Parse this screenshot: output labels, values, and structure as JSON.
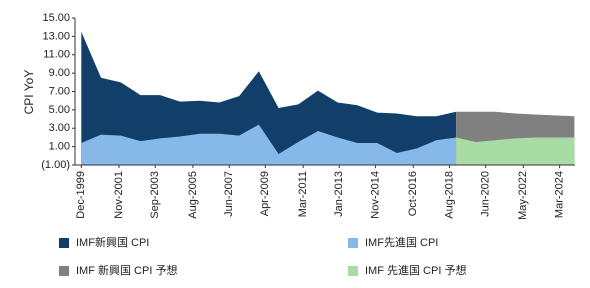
{
  "chart_data": {
    "type": "area",
    "y_label": "CPI YoY",
    "ylim": [
      -1,
      15
    ],
    "yticks": [
      {
        "value": -1,
        "label": "(1.00)"
      },
      {
        "value": 1,
        "label": "1.00"
      },
      {
        "value": 3,
        "label": "3.00"
      },
      {
        "value": 5,
        "label": "5.00"
      },
      {
        "value": 7,
        "label": "7.00"
      },
      {
        "value": 9,
        "label": "9.00"
      },
      {
        "value": 11,
        "label": "11.00"
      },
      {
        "value": 13,
        "label": "13.00"
      },
      {
        "value": 15,
        "label": "15.00"
      }
    ],
    "xlim": [
      1999.6,
      2024.95
    ],
    "xticks": [
      {
        "value": 1999.92,
        "label": "Dec-1999"
      },
      {
        "value": 2001.83,
        "label": "Nov-2001"
      },
      {
        "value": 2003.67,
        "label": "Sep-2003"
      },
      {
        "value": 2005.58,
        "label": "Aug-2005"
      },
      {
        "value": 2007.42,
        "label": "Jun-2007"
      },
      {
        "value": 2009.25,
        "label": "Apr-2009"
      },
      {
        "value": 2011.17,
        "label": "Mar-2011"
      },
      {
        "value": 2013.0,
        "label": "Jan-2013"
      },
      {
        "value": 2014.83,
        "label": "Nov-2014"
      },
      {
        "value": 2016.75,
        "label": "Oct-2016"
      },
      {
        "value": 2018.58,
        "label": "Aug-2018"
      },
      {
        "value": 2020.42,
        "label": "Jun-2020"
      },
      {
        "value": 2022.33,
        "label": "May-2022"
      },
      {
        "value": 2024.17,
        "label": "Mar-2024"
      }
    ],
    "series": [
      {
        "name": "IMF新興国 CPI",
        "color": "#123f6a",
        "x": [
          1999.92,
          2000.92,
          2001.92,
          2002.92,
          2003.92,
          2004.92,
          2005.92,
          2006.92,
          2007.92,
          2008.92,
          2009.92,
          2010.92,
          2011.92,
          2012.92,
          2013.92,
          2014.92,
          2015.92,
          2016.92,
          2017.92,
          2018.92
        ],
        "values": [
          13.5,
          8.5,
          8.0,
          6.6,
          6.6,
          5.9,
          6.0,
          5.8,
          6.5,
          9.2,
          5.2,
          5.6,
          7.1,
          5.8,
          5.5,
          4.7,
          4.6,
          4.3,
          4.3,
          4.8
        ]
      },
      {
        "name": "IMF先進国 CPI",
        "color": "#86b9e8",
        "x": [
          1999.92,
          2000.92,
          2001.92,
          2002.92,
          2003.92,
          2004.92,
          2005.92,
          2006.92,
          2007.92,
          2008.92,
          2009.92,
          2010.92,
          2011.92,
          2012.92,
          2013.92,
          2014.92,
          2015.92,
          2016.92,
          2017.92,
          2018.92
        ],
        "values": [
          1.4,
          2.3,
          2.2,
          1.6,
          1.9,
          2.1,
          2.4,
          2.4,
          2.2,
          3.4,
          0.2,
          1.5,
          2.7,
          2.0,
          1.4,
          1.4,
          0.3,
          0.8,
          1.7,
          2.0
        ]
      },
      {
        "name": "IMF 新興国 CPI 予想",
        "color": "#808080",
        "x": [
          2018.92,
          2019.92,
          2020.92,
          2021.92,
          2022.92,
          2023.92,
          2024.92
        ],
        "values": [
          4.8,
          4.8,
          4.8,
          4.6,
          4.5,
          4.4,
          4.3
        ]
      },
      {
        "name": "IMF 先進国 CPI 予想",
        "color": "#a8dca4",
        "x": [
          2018.92,
          2019.92,
          2020.92,
          2021.92,
          2022.92,
          2023.92,
          2024.92
        ],
        "values": [
          2.0,
          1.5,
          1.7,
          1.9,
          2.0,
          2.0,
          2.0
        ]
      }
    ]
  }
}
